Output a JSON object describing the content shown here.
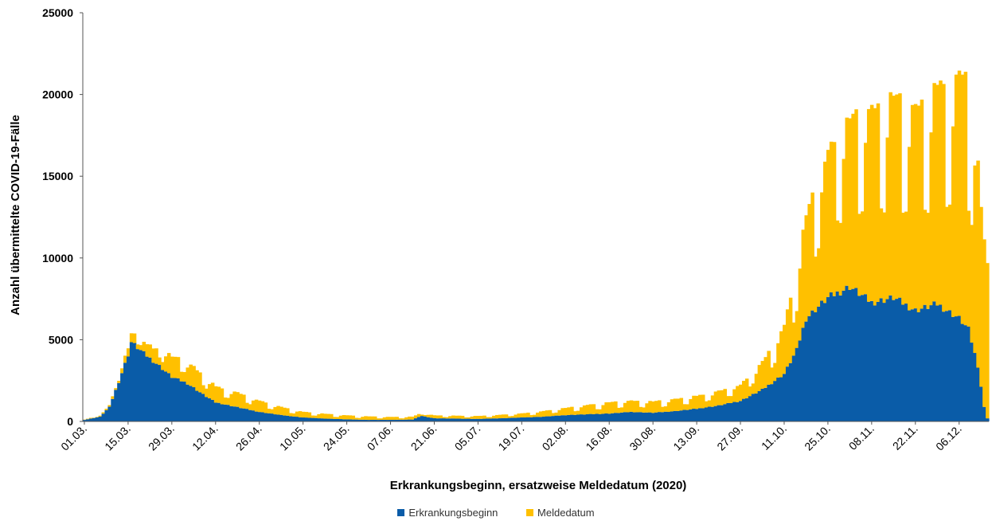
{
  "chart_data": {
    "type": "bar",
    "stacked": true,
    "title": "",
    "xlabel": "Erkrankungsbeginn, ersatzweise Meldedatum (2020)",
    "ylabel": "Anzahl übermittelte COVID-19-Fälle",
    "ylim": [
      0,
      25000
    ],
    "y_ticks": [
      "0",
      "5000",
      "10000",
      "15000",
      "20000",
      "25000"
    ],
    "x_tick_labels": [
      "01.03.",
      "15.03.",
      "29.03.",
      "12.04.",
      "26.04.",
      "10.05.",
      "24.05.",
      "07.06.",
      "21.06.",
      "05.07.",
      "19.07.",
      "02.08.",
      "16.08.",
      "30.08.",
      "13.09.",
      "27.09.",
      "11.10.",
      "25.10.",
      "08.11.",
      "22.11.",
      "06.12."
    ],
    "x_range": [
      "01.03.",
      "15.12."
    ],
    "legend_position": "bottom-center",
    "grid": false,
    "series": [
      {
        "name": "Erkrankungsbeginn",
        "color": "#0a5ca8",
        "anchors": [
          [
            "01.03.",
            100
          ],
          [
            "06.03.",
            300
          ],
          [
            "09.03.",
            900
          ],
          [
            "12.03.",
            2500
          ],
          [
            "15.03.",
            4200
          ],
          [
            "16.03.",
            5000
          ],
          [
            "20.03.",
            4300
          ],
          [
            "25.03.",
            3500
          ],
          [
            "29.03.",
            2800
          ],
          [
            "03.04.",
            2400
          ],
          [
            "08.04.",
            1700
          ],
          [
            "12.04.",
            1200
          ],
          [
            "19.04.",
            900
          ],
          [
            "26.04.",
            600
          ],
          [
            "03.05.",
            400
          ],
          [
            "10.05.",
            250
          ],
          [
            "17.05.",
            180
          ],
          [
            "24.05.",
            130
          ],
          [
            "31.05.",
            100
          ],
          [
            "07.06.",
            100
          ],
          [
            "14.06.",
            120
          ],
          [
            "17.06.",
            350
          ],
          [
            "21.06.",
            200
          ],
          [
            "28.06.",
            180
          ],
          [
            "05.07.",
            160
          ],
          [
            "12.07.",
            200
          ],
          [
            "19.07.",
            250
          ],
          [
            "26.07.",
            300
          ],
          [
            "02.08.",
            400
          ],
          [
            "09.08.",
            450
          ],
          [
            "16.08.",
            500
          ],
          [
            "23.08.",
            600
          ],
          [
            "30.08.",
            550
          ],
          [
            "06.09.",
            650
          ],
          [
            "13.09.",
            800
          ],
          [
            "20.09.",
            1000
          ],
          [
            "27.09.",
            1300
          ],
          [
            "04.10.",
            2000
          ],
          [
            "11.10.",
            3000
          ],
          [
            "15.10.",
            4500
          ],
          [
            "18.10.",
            6500
          ],
          [
            "25.10.",
            7800
          ],
          [
            "01.11.",
            8500
          ],
          [
            "08.11.",
            7500
          ],
          [
            "15.11.",
            7800
          ],
          [
            "22.11.",
            7000
          ],
          [
            "29.11.",
            7400
          ],
          [
            "06.12.",
            6500
          ],
          [
            "09.12.",
            5800
          ],
          [
            "12.12.",
            3500
          ],
          [
            "14.12.",
            900
          ],
          [
            "15.12.",
            200
          ]
        ]
      },
      {
        "name": "Meldedatum",
        "color": "#ffc000",
        "anchors": [
          [
            "01.03.",
            20
          ],
          [
            "09.03.",
            100
          ],
          [
            "15.03.",
            500
          ],
          [
            "22.03.",
            800
          ],
          [
            "29.03.",
            1300
          ],
          [
            "05.04.",
            1300
          ],
          [
            "12.04.",
            1000
          ],
          [
            "19.04.",
            900
          ],
          [
            "26.04.",
            700
          ],
          [
            "03.05.",
            500
          ],
          [
            "10.05.",
            350
          ],
          [
            "24.05.",
            250
          ],
          [
            "07.06.",
            180
          ],
          [
            "21.06.",
            180
          ],
          [
            "05.07.",
            180
          ],
          [
            "19.07.",
            250
          ],
          [
            "02.08.",
            450
          ],
          [
            "16.08.",
            700
          ],
          [
            "30.08.",
            700
          ],
          [
            "13.09.",
            800
          ],
          [
            "27.09.",
            1000
          ],
          [
            "04.10.",
            1700
          ],
          [
            "11.10.",
            3000
          ],
          [
            "18.10.",
            6500
          ],
          [
            "25.10.",
            9000
          ],
          [
            "01.11.",
            10500
          ],
          [
            "08.11.",
            12000
          ],
          [
            "15.11.",
            12500
          ],
          [
            "22.11.",
            12500
          ],
          [
            "29.11.",
            13500
          ],
          [
            "06.12.",
            15000
          ],
          [
            "10.12.",
            16000
          ],
          [
            "13.12.",
            11000
          ],
          [
            "15.12.",
            9500
          ]
        ]
      }
    ]
  },
  "legend": {
    "items": [
      {
        "label": "Erkrankungsbeginn",
        "color": "#0a5ca8"
      },
      {
        "label": "Meldedatum",
        "color": "#ffc000"
      }
    ]
  }
}
